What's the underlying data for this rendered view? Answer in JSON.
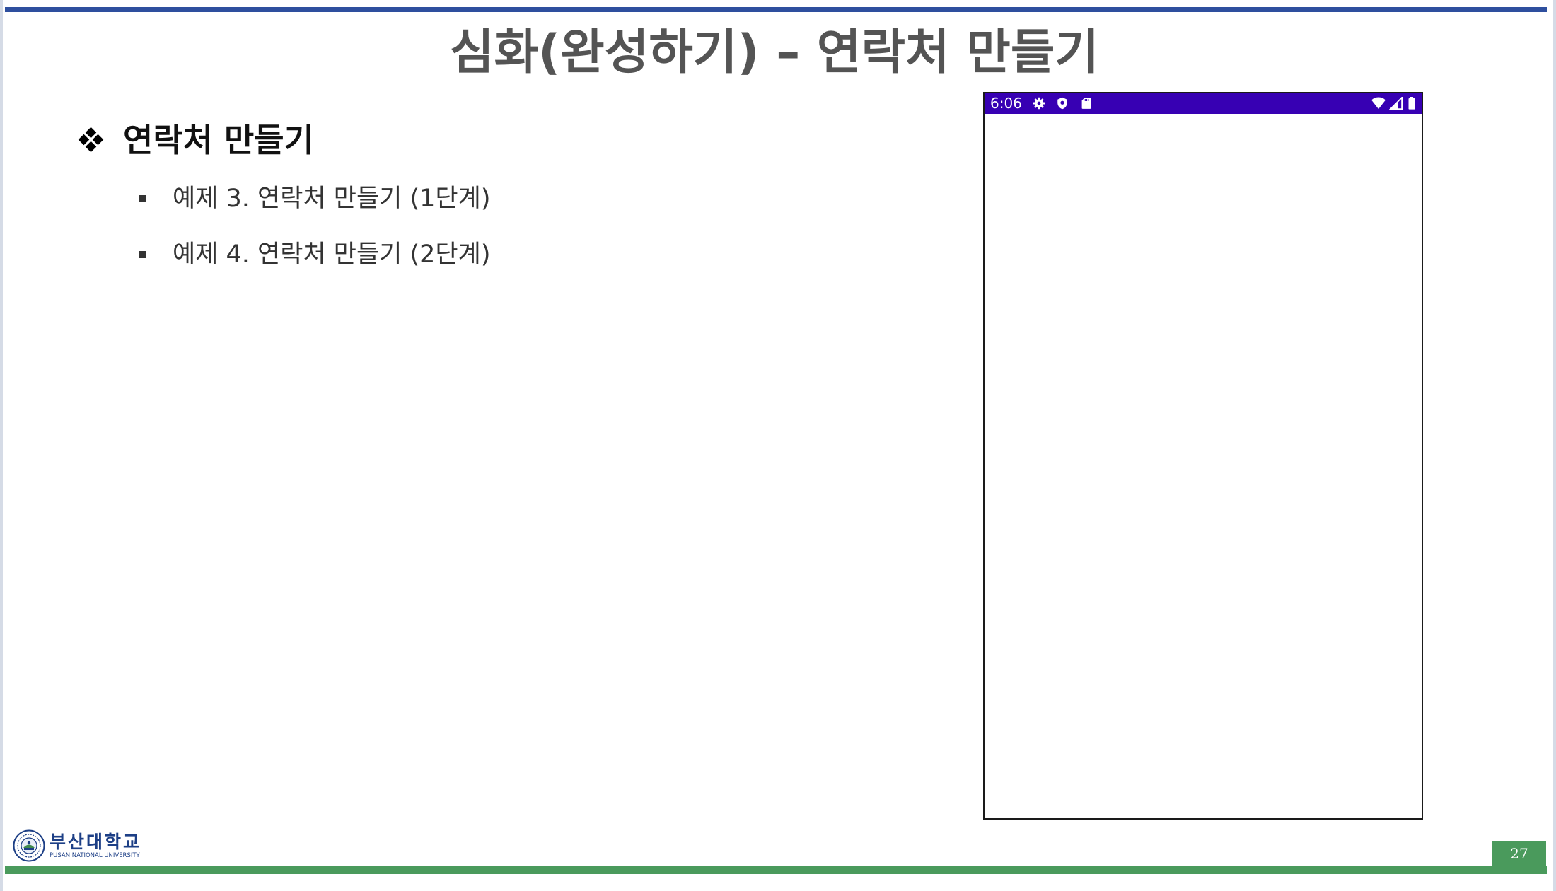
{
  "slide": {
    "title": "심화(완성하기) – 연락처 만들기",
    "heading": "연락처 만들기",
    "items": [
      {
        "label": "예제 3. 연락처 만들기 (1단계)"
      },
      {
        "label": "예제 4. 연락처 만들기 (2단계)"
      }
    ],
    "page_number": "27"
  },
  "phone": {
    "status_time": "6:06",
    "status_bar_color": "#3700b3",
    "status_left_icons": [
      "settings-gear-icon",
      "shield-icon",
      "sd-card-icon"
    ],
    "status_right_icons": [
      "wifi-icon",
      "cell-signal-icon",
      "battery-icon"
    ]
  },
  "logo": {
    "name_ko": "부산대학교",
    "name_en": "PUSAN NATIONAL UNIVERSITY"
  },
  "colors": {
    "top_bar": "#2e4f9e",
    "bottom_bar": "#4a9a5c",
    "title_text": "#545454"
  }
}
